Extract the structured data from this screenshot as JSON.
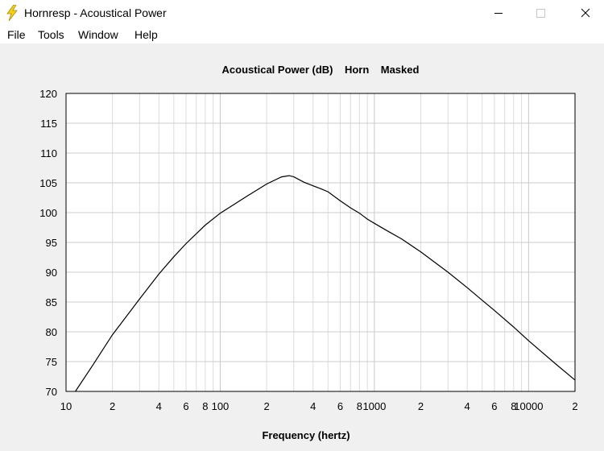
{
  "window": {
    "title": "Hornresp - Acoustical Power",
    "icon": "lightning-bolt-icon",
    "controls": [
      "minimize-icon",
      "maximize-icon",
      "close-icon"
    ]
  },
  "menu": [
    "File",
    "Tools",
    "Window",
    "Help"
  ],
  "chart_data": {
    "type": "line",
    "title": "Acoustical Power (dB)    Horn    Masked",
    "xlabel": "Frequency (hertz)",
    "ylabel": "",
    "x_scale": "log",
    "xlim": [
      10,
      20000
    ],
    "ylim": [
      70,
      120
    ],
    "grid": true,
    "y_ticks": [
      "120",
      "115",
      "110",
      "105",
      "100",
      "95",
      "90",
      "85",
      "80",
      "75",
      "70"
    ],
    "x_tick_labels": [
      {
        "x": 10,
        "label": "10"
      },
      {
        "x": 20,
        "label": "2"
      },
      {
        "x": 40,
        "label": "4"
      },
      {
        "x": 60,
        "label": "6"
      },
      {
        "x": 80,
        "label": "8"
      },
      {
        "x": 100,
        "label": "100"
      },
      {
        "x": 200,
        "label": "2"
      },
      {
        "x": 400,
        "label": "4"
      },
      {
        "x": 600,
        "label": "6"
      },
      {
        "x": 800,
        "label": "8"
      },
      {
        "x": 1000,
        "label": "1000"
      },
      {
        "x": 2000,
        "label": "2"
      },
      {
        "x": 4000,
        "label": "4"
      },
      {
        "x": 6000,
        "label": "6"
      },
      {
        "x": 8000,
        "label": "8"
      },
      {
        "x": 10000,
        "label": "10000"
      },
      {
        "x": 20000,
        "label": "2"
      }
    ],
    "series": [
      {
        "color": "#000000",
        "x": [
          11.5,
          15,
          20,
          30,
          40,
          50,
          60,
          80,
          100,
          150,
          200,
          250,
          280,
          300,
          350,
          400,
          450,
          500,
          600,
          700,
          800,
          900,
          1000,
          1200,
          1500,
          2000,
          3000,
          4000,
          5000,
          6000,
          8000,
          10000,
          15000,
          20000
        ],
        "y": [
          70,
          74.5,
          79.5,
          85.5,
          89.7,
          92.6,
          94.8,
          97.9,
          99.9,
          102.8,
          104.8,
          106,
          106.2,
          106,
          105.1,
          104.5,
          104,
          103.5,
          102,
          100.8,
          99.9,
          98.9,
          98.2,
          97,
          95.6,
          93.4,
          90,
          87.4,
          85.3,
          83.6,
          80.8,
          78.5,
          74.6,
          71.9
        ]
      }
    ]
  }
}
